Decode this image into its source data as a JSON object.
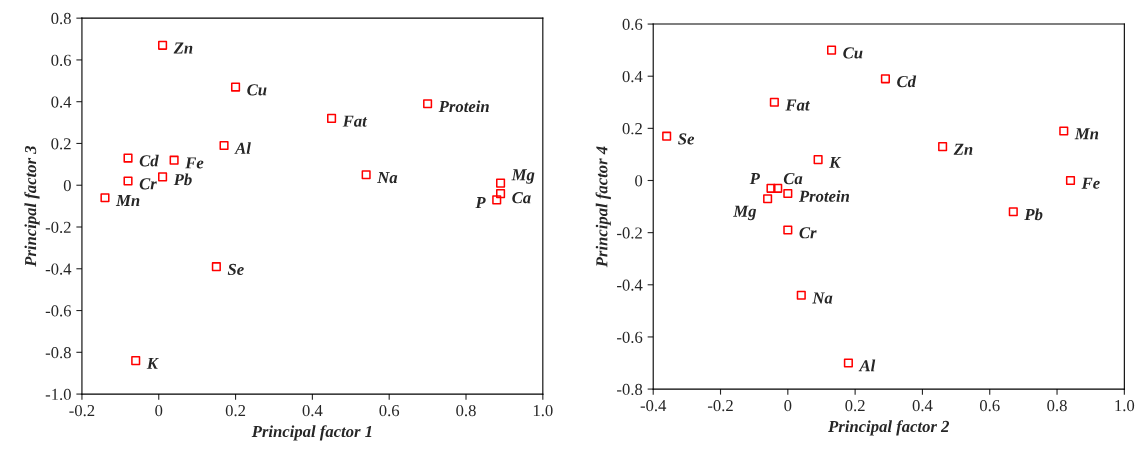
{
  "chart_data": [
    {
      "type": "scatter",
      "xlabel": "Principal factor 1",
      "ylabel": "Principal factor 3",
      "marker": "square",
      "grid": false,
      "legend": false,
      "series": [
        {
          "color": "#ff0000",
          "x": [
            0.01,
            0.2,
            0.7,
            0.45,
            0.17,
            -0.08,
            0.04,
            -0.08,
            0.01,
            -0.14,
            0.54,
            0.89,
            0.89,
            0.88,
            0.15,
            -0.06
          ],
          "values": [
            0.67,
            0.47,
            0.39,
            0.32,
            0.19,
            0.13,
            0.12,
            0.02,
            0.04,
            -0.06,
            0.05,
            0.01,
            -0.04,
            -0.07,
            -0.39,
            -0.84
          ]
        }
      ],
      "annotations": [
        {
          "text": "Zn",
          "x": 0.01,
          "y": 0.67
        },
        {
          "text": "Cu",
          "x": 0.2,
          "y": 0.47
        },
        {
          "text": "Protein",
          "x": 0.7,
          "y": 0.39
        },
        {
          "text": "Fat",
          "x": 0.45,
          "y": 0.32
        },
        {
          "text": "Al",
          "x": 0.17,
          "y": 0.19
        },
        {
          "text": "Cd",
          "x": -0.08,
          "y": 0.13
        },
        {
          "text": "Fe",
          "x": 0.04,
          "y": 0.12
        },
        {
          "text": "Cr",
          "x": -0.08,
          "y": 0.02
        },
        {
          "text": "Pb",
          "x": 0.01,
          "y": 0.04
        },
        {
          "text": "Mn",
          "x": -0.14,
          "y": -0.06
        },
        {
          "text": "Na",
          "x": 0.54,
          "y": 0.05
        },
        {
          "text": "Mg",
          "x": 0.89,
          "y": 0.01
        },
        {
          "text": "Ca",
          "x": 0.89,
          "y": -0.04
        },
        {
          "text": "P",
          "x": 0.88,
          "y": -0.07
        },
        {
          "text": "Se",
          "x": 0.15,
          "y": -0.39
        },
        {
          "text": "K",
          "x": -0.06,
          "y": -0.84
        }
      ],
      "xlim": [
        -0.2,
        1
      ],
      "ylim": [
        -1,
        0.8
      ],
      "xticks": [
        -0.2,
        0,
        0.2,
        0.4,
        0.6,
        0.8,
        {
          "value": 1,
          "label": "1.0"
        }
      ],
      "yticks": [
        {
          "value": -1,
          "label": "-1.0"
        },
        -0.8,
        -0.6,
        -0.4,
        -0.2,
        0,
        0.2,
        0.4,
        0.6,
        0.8
      ]
    },
    {
      "type": "scatter",
      "xlabel": "Principal factor 2",
      "ylabel": "Principal factor 4",
      "marker": "square",
      "grid": false,
      "legend": false,
      "series": [
        {
          "color": "#ff0000",
          "x": [
            0.13,
            0.29,
            -0.04,
            -0.36,
            0.82,
            0.46,
            0.09,
            0.84,
            -0.05,
            -0.03,
            0.0,
            -0.06,
            0.67,
            0.0,
            0.04,
            0.18
          ],
          "values": [
            0.5,
            0.39,
            0.3,
            0.17,
            0.19,
            0.13,
            0.08,
            0.0,
            -0.03,
            -0.03,
            -0.05,
            -0.07,
            -0.12,
            -0.19,
            -0.44,
            -0.7
          ]
        }
      ],
      "annotations": [
        {
          "text": "Cu",
          "x": 0.13,
          "y": 0.5
        },
        {
          "text": "Cd",
          "x": 0.29,
          "y": 0.39
        },
        {
          "text": "Fat",
          "x": -0.04,
          "y": 0.3
        },
        {
          "text": "Se",
          "x": -0.36,
          "y": 0.17
        },
        {
          "text": "Mn",
          "x": 0.82,
          "y": 0.19
        },
        {
          "text": "Zn",
          "x": 0.46,
          "y": 0.13
        },
        {
          "text": "K",
          "x": 0.09,
          "y": 0.08
        },
        {
          "text": "Fe",
          "x": 0.84,
          "y": 0.0
        },
        {
          "text": "P",
          "x": -0.05,
          "y": -0.03
        },
        {
          "text": "Ca",
          "x": -0.03,
          "y": -0.03
        },
        {
          "text": "Protein",
          "x": 0.0,
          "y": -0.05
        },
        {
          "text": "Mg",
          "x": -0.06,
          "y": -0.07
        },
        {
          "text": "Pb",
          "x": 0.67,
          "y": -0.12
        },
        {
          "text": "Cr",
          "x": 0.0,
          "y": -0.19
        },
        {
          "text": "Na",
          "x": 0.04,
          "y": -0.44
        },
        {
          "text": "Al",
          "x": 0.18,
          "y": -0.7
        }
      ],
      "xlim": [
        -0.4,
        1
      ],
      "ylim": [
        -0.8,
        0.6
      ],
      "xticks": [
        -0.4,
        -0.2,
        0,
        0.2,
        0.4,
        0.6,
        0.8,
        {
          "value": 1,
          "label": "1.0"
        }
      ],
      "yticks": [
        -0.8,
        -0.6,
        -0.4,
        -0.2,
        0,
        0.2,
        0.4,
        0.6
      ]
    }
  ]
}
